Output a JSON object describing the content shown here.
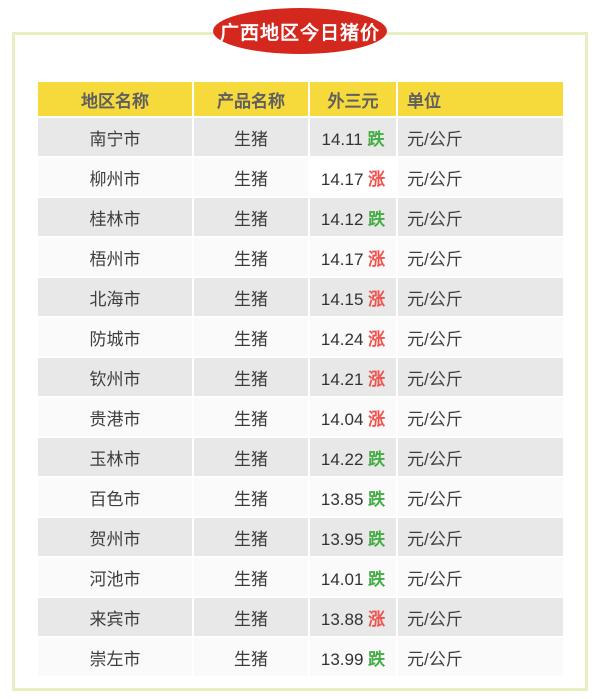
{
  "header": {
    "title": "广西地区今日猪价"
  },
  "table": {
    "headers": [
      "地区名称",
      "产品名称",
      "外三元",
      "单位"
    ],
    "rows": [
      {
        "region": "南宁市",
        "product": "生猪",
        "price": "14.11",
        "trend": "跌",
        "direction": "down",
        "unit": "元/公斤",
        "price_highlight": false
      },
      {
        "region": "柳州市",
        "product": "生猪",
        "price": "14.17",
        "trend": "涨",
        "direction": "up",
        "unit": "元/公斤",
        "price_highlight": true
      },
      {
        "region": "桂林市",
        "product": "生猪",
        "price": "14.12",
        "trend": "跌",
        "direction": "down",
        "unit": "元/公斤",
        "price_highlight": false
      },
      {
        "region": "梧州市",
        "product": "生猪",
        "price": "14.17",
        "trend": "涨",
        "direction": "up",
        "unit": "元/公斤",
        "price_highlight": false
      },
      {
        "region": "北海市",
        "product": "生猪",
        "price": "14.15",
        "trend": "涨",
        "direction": "up",
        "unit": "元/公斤",
        "price_highlight": false
      },
      {
        "region": "防城市",
        "product": "生猪",
        "price": "14.24",
        "trend": "涨",
        "direction": "up",
        "unit": "元/公斤",
        "price_highlight": false
      },
      {
        "region": "钦州市",
        "product": "生猪",
        "price": "14.21",
        "trend": "涨",
        "direction": "up",
        "unit": "元/公斤",
        "price_highlight": false
      },
      {
        "region": "贵港市",
        "product": "生猪",
        "price": "14.04",
        "trend": "涨",
        "direction": "up",
        "unit": "元/公斤",
        "price_highlight": false
      },
      {
        "region": "玉林市",
        "product": "生猪",
        "price": "14.22",
        "trend": "跌",
        "direction": "down",
        "unit": "元/公斤",
        "price_highlight": false
      },
      {
        "region": "百色市",
        "product": "生猪",
        "price": "13.85",
        "trend": "跌",
        "direction": "down",
        "unit": "元/公斤",
        "price_highlight": false
      },
      {
        "region": "贺州市",
        "product": "生猪",
        "price": "13.95",
        "trend": "跌",
        "direction": "down",
        "unit": "元/公斤",
        "price_highlight": false
      },
      {
        "region": "河池市",
        "product": "生猪",
        "price": "14.01",
        "trend": "跌",
        "direction": "down",
        "unit": "元/公斤",
        "price_highlight": false
      },
      {
        "region": "来宾市",
        "product": "生猪",
        "price": "13.88",
        "trend": "涨",
        "direction": "up",
        "unit": "元/公斤",
        "price_highlight": false
      },
      {
        "region": "崇左市",
        "product": "生猪",
        "price": "13.99",
        "trend": "跌",
        "direction": "down",
        "unit": "元/公斤",
        "price_highlight": false
      }
    ]
  },
  "chart_data": {
    "type": "table",
    "title": "广西地区今日猪价",
    "columns": [
      "地区名称",
      "产品名称",
      "外三元",
      "单位"
    ],
    "regions": [
      "南宁市",
      "柳州市",
      "桂林市",
      "梧州市",
      "北海市",
      "防城市",
      "钦州市",
      "贵港市",
      "玉林市",
      "百色市",
      "贺州市",
      "河池市",
      "来宾市",
      "崇左市"
    ],
    "product": "生猪",
    "prices": [
      14.11,
      14.17,
      14.12,
      14.17,
      14.15,
      14.24,
      14.21,
      14.04,
      14.22,
      13.85,
      13.95,
      14.01,
      13.88,
      13.99
    ],
    "trends": [
      "跌",
      "涨",
      "跌",
      "涨",
      "涨",
      "涨",
      "涨",
      "涨",
      "跌",
      "跌",
      "跌",
      "跌",
      "涨",
      "跌"
    ],
    "unit": "元/公斤"
  },
  "colors": {
    "badge_red": "#d4281e",
    "header_yellow": "#f6da3b",
    "trend_up_red": "#ef5350",
    "trend_down_green": "#43ad43",
    "panel_border_green": "#e7efc2",
    "row_stripe_gray": "#e8e8e8"
  }
}
